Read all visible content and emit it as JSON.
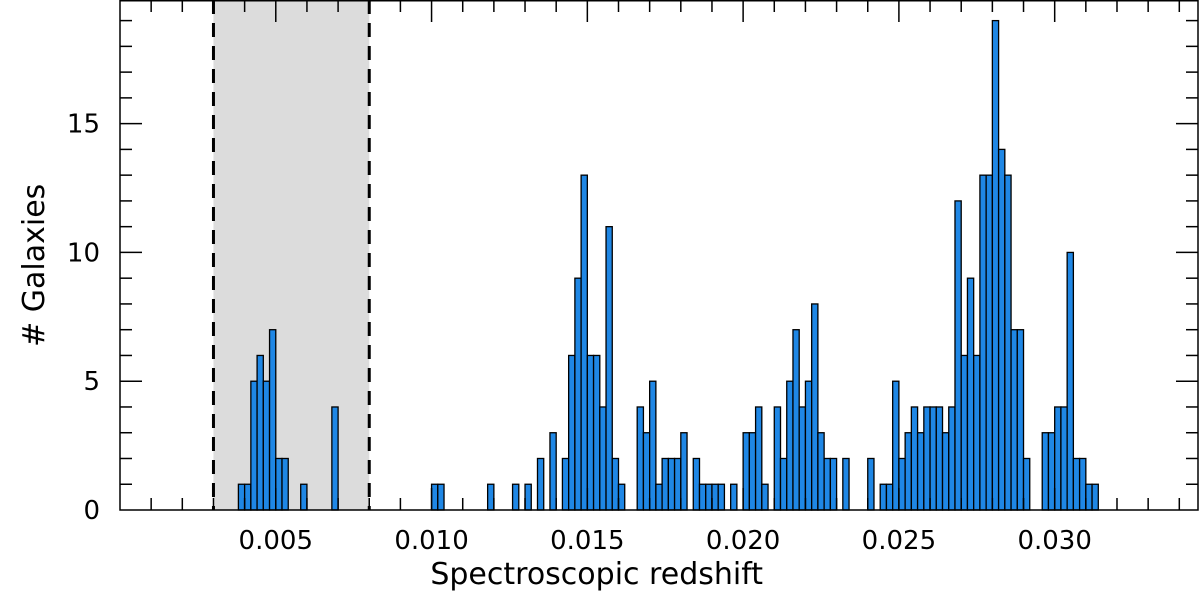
{
  "chart_data": {
    "type": "bar",
    "xlabel": "Spectroscopic redshift",
    "ylabel": "# Galaxies",
    "xlim": [
      0.0,
      0.0346
    ],
    "ylim": [
      0,
      19.8
    ],
    "x_ticks": [
      0.005,
      0.01,
      0.015,
      0.02,
      0.025,
      0.03
    ],
    "x_tick_labels": [
      "0.005",
      "0.010",
      "0.015",
      "0.020",
      "0.025",
      "0.030"
    ],
    "y_ticks": [
      0,
      5,
      10,
      15
    ],
    "y_tick_labels": [
      "0",
      "5",
      "10",
      "15"
    ],
    "bin_width": 0.0002,
    "shaded_region": [
      0.003,
      0.008
    ],
    "grid": false,
    "legend": "none",
    "colors": {
      "bar_fill": "#1f87e5",
      "bar_edge": "#000000",
      "shade": "#dcdcdc",
      "boundary_line": "#000000"
    },
    "bins": [
      {
        "x": 0.0038,
        "y": 1
      },
      {
        "x": 0.004,
        "y": 1
      },
      {
        "x": 0.0042,
        "y": 5
      },
      {
        "x": 0.0044,
        "y": 6
      },
      {
        "x": 0.0046,
        "y": 5
      },
      {
        "x": 0.0048,
        "y": 7
      },
      {
        "x": 0.005,
        "y": 2
      },
      {
        "x": 0.0052,
        "y": 2
      },
      {
        "x": 0.0058,
        "y": 1
      },
      {
        "x": 0.0068,
        "y": 4
      },
      {
        "x": 0.01,
        "y": 1
      },
      {
        "x": 0.0102,
        "y": 1
      },
      {
        "x": 0.0118,
        "y": 1
      },
      {
        "x": 0.0126,
        "y": 1
      },
      {
        "x": 0.013,
        "y": 1
      },
      {
        "x": 0.0134,
        "y": 2
      },
      {
        "x": 0.0138,
        "y": 3
      },
      {
        "x": 0.0142,
        "y": 2
      },
      {
        "x": 0.0144,
        "y": 6
      },
      {
        "x": 0.0146,
        "y": 9
      },
      {
        "x": 0.0148,
        "y": 13
      },
      {
        "x": 0.015,
        "y": 6
      },
      {
        "x": 0.0152,
        "y": 6
      },
      {
        "x": 0.0154,
        "y": 4
      },
      {
        "x": 0.0156,
        "y": 11
      },
      {
        "x": 0.0158,
        "y": 2
      },
      {
        "x": 0.016,
        "y": 1
      },
      {
        "x": 0.0166,
        "y": 4
      },
      {
        "x": 0.0168,
        "y": 3
      },
      {
        "x": 0.017,
        "y": 5
      },
      {
        "x": 0.0172,
        "y": 1
      },
      {
        "x": 0.0174,
        "y": 2
      },
      {
        "x": 0.0176,
        "y": 2
      },
      {
        "x": 0.0178,
        "y": 2
      },
      {
        "x": 0.018,
        "y": 3
      },
      {
        "x": 0.0184,
        "y": 2
      },
      {
        "x": 0.0186,
        "y": 1
      },
      {
        "x": 0.0188,
        "y": 1
      },
      {
        "x": 0.019,
        "y": 1
      },
      {
        "x": 0.0192,
        "y": 1
      },
      {
        "x": 0.0196,
        "y": 1
      },
      {
        "x": 0.02,
        "y": 3
      },
      {
        "x": 0.0202,
        "y": 3
      },
      {
        "x": 0.0204,
        "y": 4
      },
      {
        "x": 0.0206,
        "y": 1
      },
      {
        "x": 0.021,
        "y": 4
      },
      {
        "x": 0.0212,
        "y": 2
      },
      {
        "x": 0.0214,
        "y": 5
      },
      {
        "x": 0.0216,
        "y": 7
      },
      {
        "x": 0.0218,
        "y": 4
      },
      {
        "x": 0.022,
        "y": 5
      },
      {
        "x": 0.0222,
        "y": 8
      },
      {
        "x": 0.0224,
        "y": 3
      },
      {
        "x": 0.0226,
        "y": 2
      },
      {
        "x": 0.0228,
        "y": 2
      },
      {
        "x": 0.0232,
        "y": 2
      },
      {
        "x": 0.024,
        "y": 2
      },
      {
        "x": 0.0244,
        "y": 1
      },
      {
        "x": 0.0246,
        "y": 1
      },
      {
        "x": 0.0248,
        "y": 5
      },
      {
        "x": 0.025,
        "y": 2
      },
      {
        "x": 0.0252,
        "y": 3
      },
      {
        "x": 0.0254,
        "y": 4
      },
      {
        "x": 0.0256,
        "y": 3
      },
      {
        "x": 0.0258,
        "y": 4
      },
      {
        "x": 0.026,
        "y": 4
      },
      {
        "x": 0.0262,
        "y": 4
      },
      {
        "x": 0.0264,
        "y": 3
      },
      {
        "x": 0.0266,
        "y": 4
      },
      {
        "x": 0.0268,
        "y": 12
      },
      {
        "x": 0.027,
        "y": 6
      },
      {
        "x": 0.0272,
        "y": 9
      },
      {
        "x": 0.0274,
        "y": 6
      },
      {
        "x": 0.0276,
        "y": 13
      },
      {
        "x": 0.0278,
        "y": 13
      },
      {
        "x": 0.028,
        "y": 19
      },
      {
        "x": 0.0282,
        "y": 14
      },
      {
        "x": 0.0284,
        "y": 13
      },
      {
        "x": 0.0286,
        "y": 7
      },
      {
        "x": 0.0288,
        "y": 7
      },
      {
        "x": 0.029,
        "y": 2
      },
      {
        "x": 0.0296,
        "y": 3
      },
      {
        "x": 0.0298,
        "y": 3
      },
      {
        "x": 0.03,
        "y": 4
      },
      {
        "x": 0.0302,
        "y": 4
      },
      {
        "x": 0.0304,
        "y": 10
      },
      {
        "x": 0.0306,
        "y": 2
      },
      {
        "x": 0.0308,
        "y": 2
      },
      {
        "x": 0.031,
        "y": 1
      },
      {
        "x": 0.0312,
        "y": 1
      }
    ]
  }
}
